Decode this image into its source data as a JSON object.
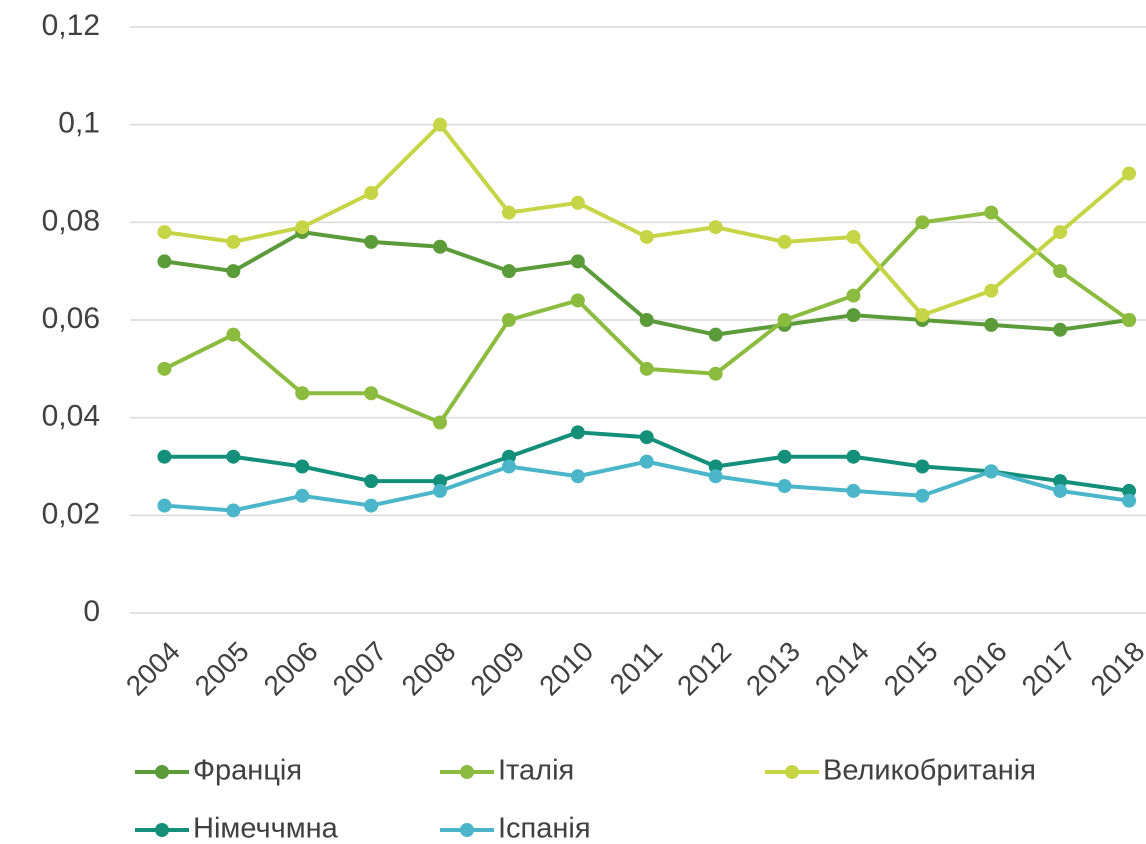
{
  "chart_data": {
    "type": "line",
    "categories": [
      "2004",
      "2005",
      "2006",
      "2007",
      "2008",
      "2009",
      "2010",
      "2011",
      "2012",
      "2013",
      "2014",
      "2015",
      "2016",
      "2017",
      "2018"
    ],
    "series": [
      {
        "name": "Франція",
        "color": "#5b9b3a",
        "values": [
          0.072,
          0.07,
          0.078,
          0.076,
          0.075,
          0.07,
          0.072,
          0.06,
          0.057,
          0.059,
          0.061,
          0.06,
          0.059,
          0.058,
          0.06
        ]
      },
      {
        "name": "Італія",
        "color": "#8cbc3f",
        "values": [
          0.05,
          0.057,
          0.045,
          0.045,
          0.039,
          0.06,
          0.064,
          0.05,
          0.049,
          0.06,
          0.065,
          0.08,
          0.082,
          0.07,
          0.06
        ]
      },
      {
        "name": "Великобританія",
        "color": "#c5d545",
        "values": [
          0.078,
          0.076,
          0.079,
          0.086,
          0.1,
          0.082,
          0.084,
          0.077,
          0.079,
          0.076,
          0.077,
          0.061,
          0.066,
          0.078,
          0.09
        ]
      },
      {
        "name": "Німеччмна",
        "color": "#14907a",
        "values": [
          0.032,
          0.032,
          0.03,
          0.027,
          0.027,
          0.032,
          0.037,
          0.036,
          0.03,
          0.032,
          0.032,
          0.03,
          0.029,
          0.027,
          0.025
        ]
      },
      {
        "name": "Іспанія",
        "color": "#4bb6c9",
        "values": [
          0.022,
          0.021,
          0.024,
          0.022,
          0.025,
          0.03,
          0.028,
          0.031,
          0.028,
          0.026,
          0.025,
          0.024,
          0.029,
          0.025,
          0.023
        ]
      }
    ],
    "ylim": [
      0,
      0.12
    ],
    "yticks": [
      0,
      {
        "value": 0.02,
        "label": "0,02"
      },
      {
        "value": 0.04,
        "label": "0,04"
      },
      {
        "value": 0.06,
        "label": "0,06"
      },
      {
        "value": 0.08,
        "label": "0,08"
      },
      {
        "value": 0.1,
        "label": "0,1"
      },
      {
        "value": 0.12,
        "label": "0,12"
      }
    ],
    "grid": true,
    "legend": "bottom"
  }
}
